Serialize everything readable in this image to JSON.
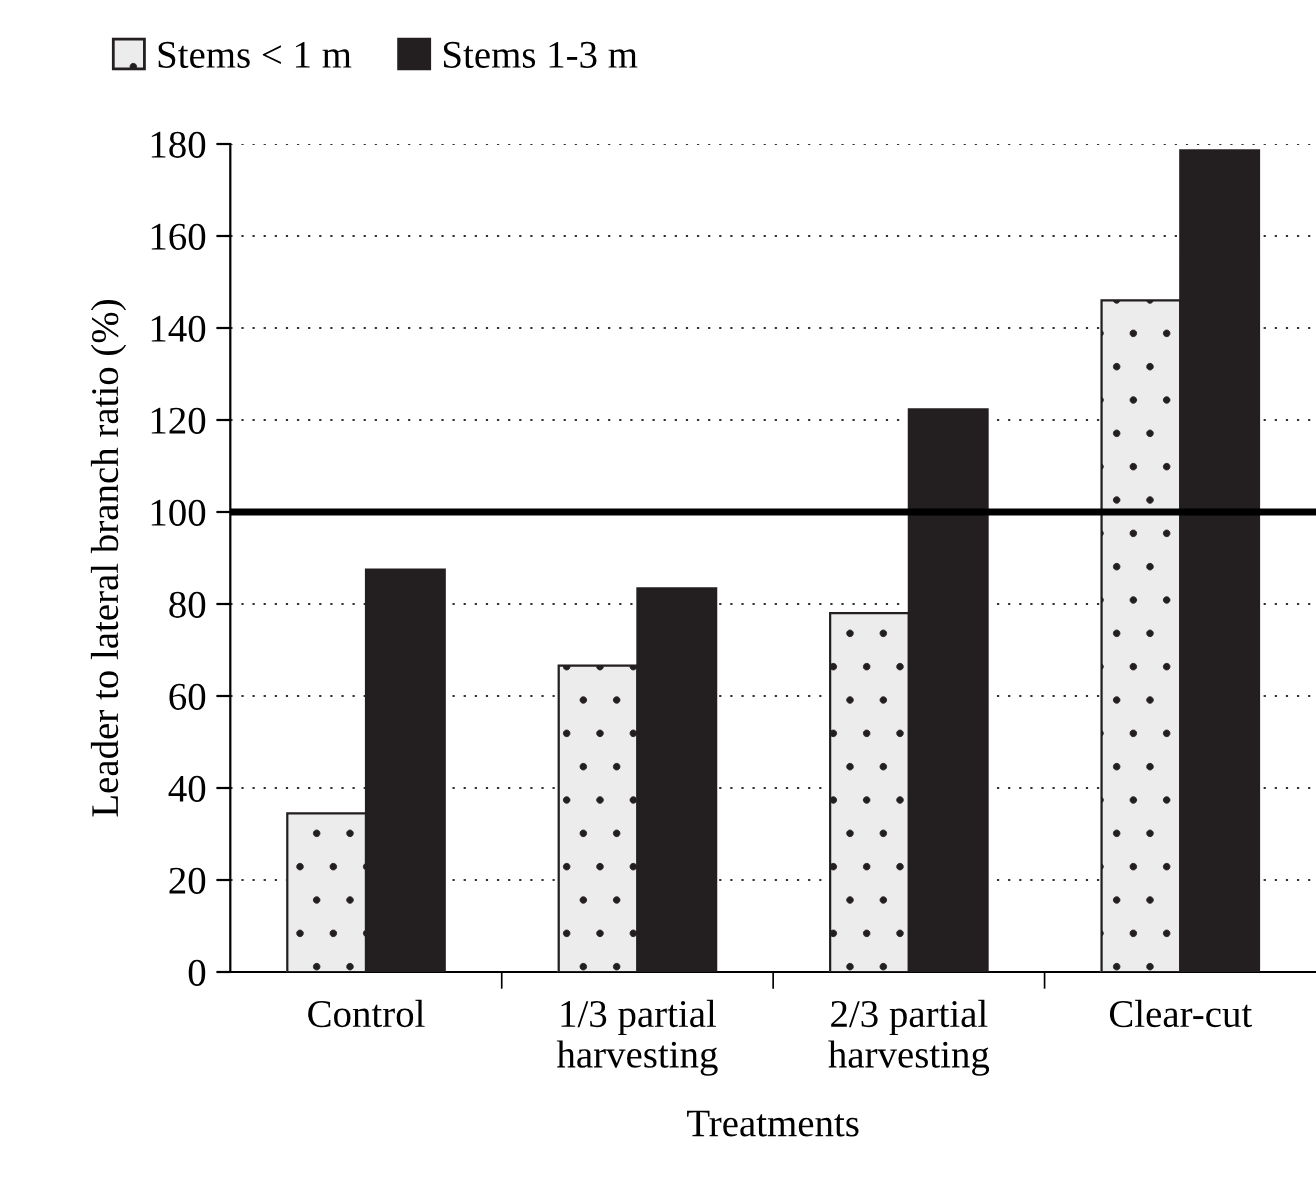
{
  "chart_data": {
    "type": "bar",
    "xlabel": "Treatments",
    "ylabel": "Leader to lateral branch ratio (%)",
    "categories": [
      "Control",
      "1/3 partial\nharvesting",
      "2/3 partial\nharvesting",
      "Clear-cut"
    ],
    "series": [
      {
        "name": "Stems < 1 m",
        "color": "#ececec",
        "values": [
          34.5,
          66.6,
          78,
          146
        ]
      },
      {
        "name": "Stems 1-3 m",
        "color": "#231f20",
        "values": [
          87.5,
          83.4,
          122.3,
          178.6
        ]
      }
    ],
    "ylim": [
      0,
      180
    ],
    "yticks": [
      0,
      20,
      40,
      60,
      80,
      100,
      120,
      140,
      160,
      180
    ],
    "grid": "y",
    "legend": "top left",
    "ref_lines": [
      {
        "axis": "y",
        "value": 100,
        "color": "#000000",
        "line_style": "solid"
      }
    ]
  }
}
